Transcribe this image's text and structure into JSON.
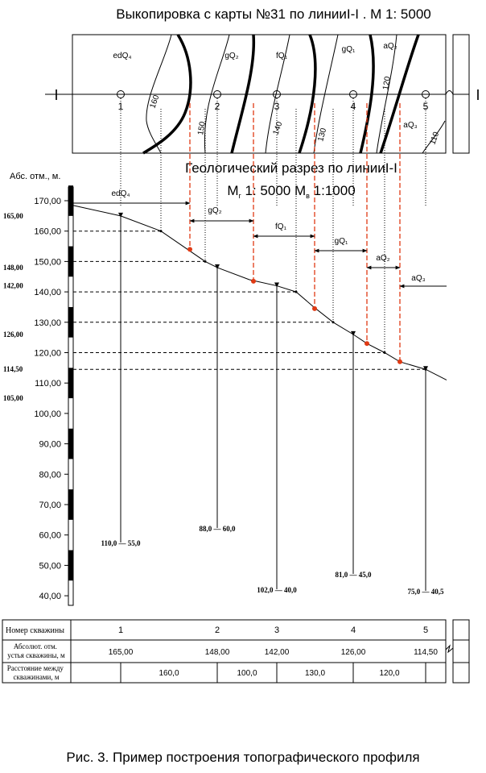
{
  "map_title": "Выкопировка с карты №31 по линииI-I . М 1: 5000",
  "line_label": "I",
  "map_units": [
    "edQ₄",
    "gQ₂",
    "fQ₁",
    "gQ₁",
    "aQ₂",
    "aQ₃"
  ],
  "contour_labels": [
    "160",
    "150",
    "140",
    "130",
    "120",
    "110"
  ],
  "well_numbers": [
    "1",
    "2",
    "3",
    "4",
    "5"
  ],
  "section_title": "Геологический разрез по линииI-I",
  "scale_prefix_g": "М",
  "scale_sub_g": "г",
  "scale_mid": "1: 5000 М",
  "scale_sub_v": "в",
  "scale_suffix": "1:1000",
  "axis_title": "Абс. отм., м.",
  "axis_ticks": [
    "170,00",
    "160,00",
    "150,00",
    "140,00",
    "130,00",
    "120,00",
    "110,00",
    "100,00",
    "90,00",
    "80,00",
    "70,00",
    "60,00",
    "50,00",
    "40,00"
  ],
  "elev_marks": [
    "165,00",
    "148,00",
    "142,00",
    "126,00",
    "114,50",
    "105,00"
  ],
  "depth_labels": [
    "110,0 — 55,0",
    "88,0 — 60,0",
    "102,0 — 40,0",
    "81,0 — 45,0",
    "75,0 — 40,5"
  ],
  "table": {
    "row_labels": [
      "Номер скважины",
      "Абсолют. отм. устья скважины, м",
      "Расстояние между скважинами, м"
    ],
    "well_numbers": [
      "1",
      "2",
      "3",
      "4",
      "5"
    ],
    "elevations": [
      "165,00",
      "148,00",
      "142,00",
      "126,00",
      "114,50"
    ],
    "distances": [
      "160,0",
      "100,0",
      "130,0",
      "120,0"
    ]
  },
  "caption": "Рис. 3. Пример построения топографического профиля"
}
